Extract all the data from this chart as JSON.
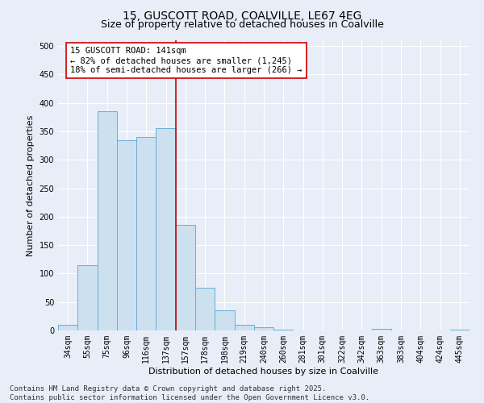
{
  "title_line1": "15, GUSCOTT ROAD, COALVILLE, LE67 4EG",
  "title_line2": "Size of property relative to detached houses in Coalville",
  "xlabel": "Distribution of detached houses by size in Coalville",
  "ylabel": "Number of detached properties",
  "categories": [
    "34sqm",
    "55sqm",
    "75sqm",
    "96sqm",
    "116sqm",
    "137sqm",
    "157sqm",
    "178sqm",
    "198sqm",
    "219sqm",
    "240sqm",
    "260sqm",
    "281sqm",
    "301sqm",
    "322sqm",
    "342sqm",
    "363sqm",
    "383sqm",
    "404sqm",
    "424sqm",
    "445sqm"
  ],
  "values": [
    10,
    115,
    385,
    335,
    340,
    355,
    185,
    75,
    35,
    10,
    6,
    1,
    0,
    0,
    0,
    0,
    3,
    0,
    0,
    0,
    2
  ],
  "bar_color": "#cce0f0",
  "bar_edge_color": "#6aaed6",
  "vline_x": 5.5,
  "vline_color": "#cc0000",
  "annotation_text": "15 GUSCOTT ROAD: 141sqm\n← 82% of detached houses are smaller (1,245)\n18% of semi-detached houses are larger (266) →",
  "annotation_box_color": "#ffffff",
  "annotation_box_edge": "#cc0000",
  "ylim": [
    0,
    510
  ],
  "yticks": [
    0,
    50,
    100,
    150,
    200,
    250,
    300,
    350,
    400,
    450,
    500
  ],
  "footer_line1": "Contains HM Land Registry data © Crown copyright and database right 2025.",
  "footer_line2": "Contains public sector information licensed under the Open Government Licence v3.0.",
  "background_color": "#e8eef8",
  "grid_color": "#ffffff",
  "title_fontsize": 10,
  "subtitle_fontsize": 9,
  "axis_label_fontsize": 8,
  "tick_fontsize": 7,
  "footer_fontsize": 6.5,
  "annotation_fontsize": 7.5
}
